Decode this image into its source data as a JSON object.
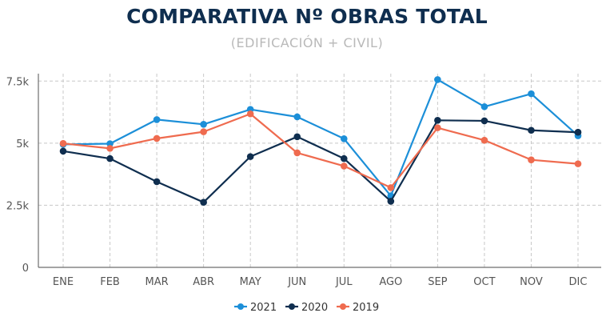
{
  "chart_data": {
    "type": "line",
    "title": "COMPARATIVA Nº OBRAS TOTAL",
    "subtitle": "(EDIFICACIÓN + CIVIL)",
    "xlabel": "",
    "ylabel": "",
    "categories": [
      "ENE",
      "FEB",
      "MAR",
      "ABR",
      "MAY",
      "JUN",
      "JUL",
      "AGO",
      "SEP",
      "OCT",
      "NOV",
      "DIC"
    ],
    "ylim": [
      0,
      7800
    ],
    "yticks": [
      {
        "value": 0,
        "label": "0"
      },
      {
        "value": 2500,
        "label": "2.5k"
      },
      {
        "value": 5000,
        "label": "5k"
      },
      {
        "value": 7500,
        "label": "7.5k"
      }
    ],
    "grid": true,
    "legend_position": "bottom-center",
    "series": [
      {
        "name": "2021",
        "color": "#1c8fd8",
        "values": [
          4950,
          4980,
          5950,
          5760,
          6360,
          6060,
          5180,
          2880,
          7560,
          6470,
          6990,
          5300
        ]
      },
      {
        "name": "2020",
        "color": "#0f2e4f",
        "values": [
          4680,
          4380,
          3450,
          2620,
          4460,
          5260,
          4380,
          2660,
          5920,
          5900,
          5520,
          5440
        ]
      },
      {
        "name": "2019",
        "color": "#ef6b4f",
        "values": [
          4990,
          4790,
          5190,
          5460,
          6180,
          4610,
          4080,
          3210,
          5620,
          5120,
          4330,
          4170
        ]
      }
    ]
  }
}
